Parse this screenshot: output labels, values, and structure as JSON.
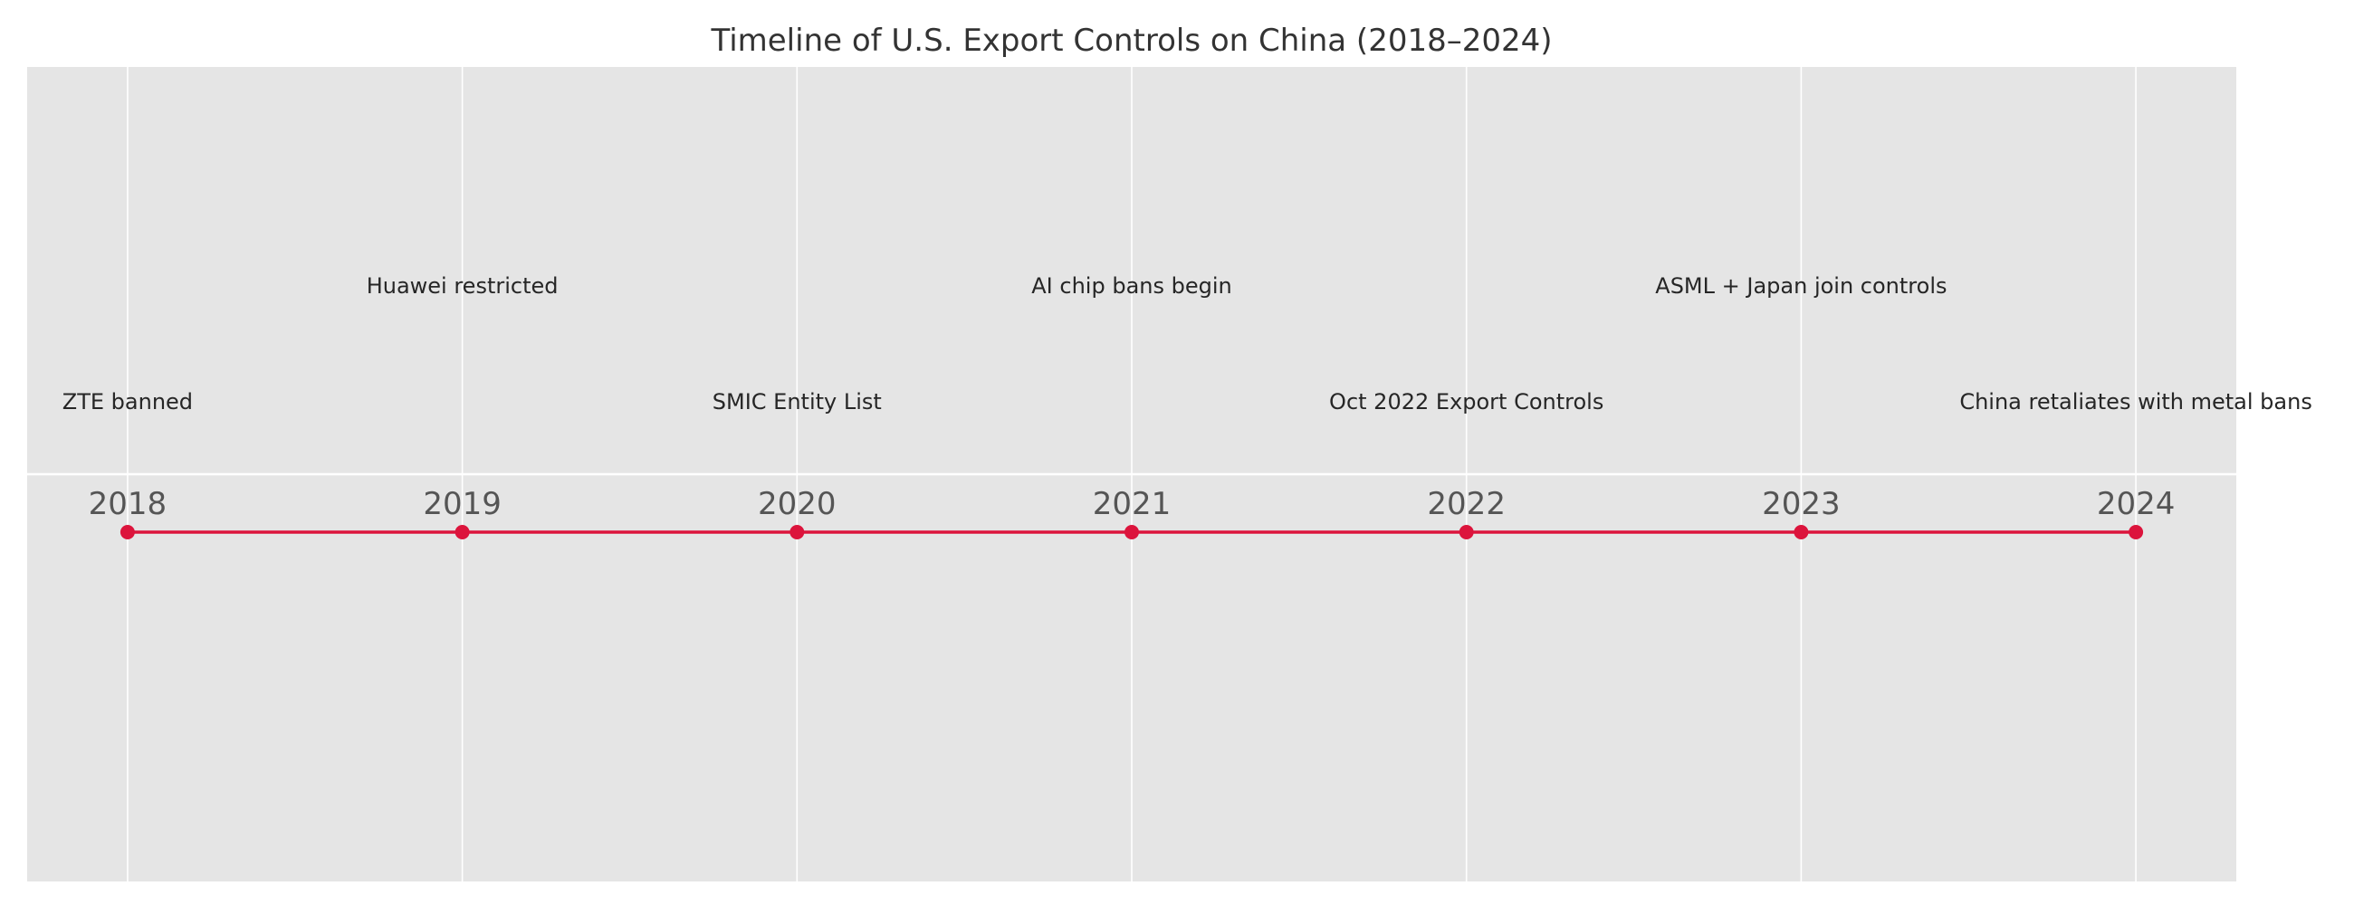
{
  "chart_data": {
    "type": "line",
    "title": "Timeline of U.S. Export Controls on China (2018–2024)",
    "xlabel": "",
    "ylabel": "",
    "x": [
      2018,
      2019,
      2020,
      2021,
      2022,
      2023,
      2024
    ],
    "xlim": [
      2017.7,
      2024.3
    ],
    "ylim": [
      -1.5,
      1.5
    ],
    "grid": true,
    "series": [
      {
        "x": [
          2018,
          2019,
          2020,
          2021,
          2022,
          2023,
          2024
        ],
        "values": [
          0,
          0,
          0,
          0,
          0,
          0,
          0
        ],
        "color": "#dc143c"
      }
    ],
    "events": [
      {
        "year": 2018,
        "label": "ZTE banned",
        "tier": "low"
      },
      {
        "year": 2019,
        "label": "Huawei restricted",
        "tier": "high"
      },
      {
        "year": 2020,
        "label": "SMIC Entity List",
        "tier": "low"
      },
      {
        "year": 2021,
        "label": "AI chip bans begin",
        "tier": "high"
      },
      {
        "year": 2022,
        "label": "Oct 2022 Export Controls",
        "tier": "low"
      },
      {
        "year": 2023,
        "label": "ASML + Japan join controls",
        "tier": "high"
      },
      {
        "year": 2024,
        "label": "China retaliates with metal bans",
        "tier": "low"
      }
    ],
    "tick_labels": [
      "2018",
      "2019",
      "2020",
      "2021",
      "2022",
      "2023",
      "2024"
    ],
    "colors": {
      "plot_background": "#e5e5e5",
      "grid": "#ffffff",
      "line": "#dc143c",
      "text": "#333333",
      "ticks": "#555555"
    }
  }
}
